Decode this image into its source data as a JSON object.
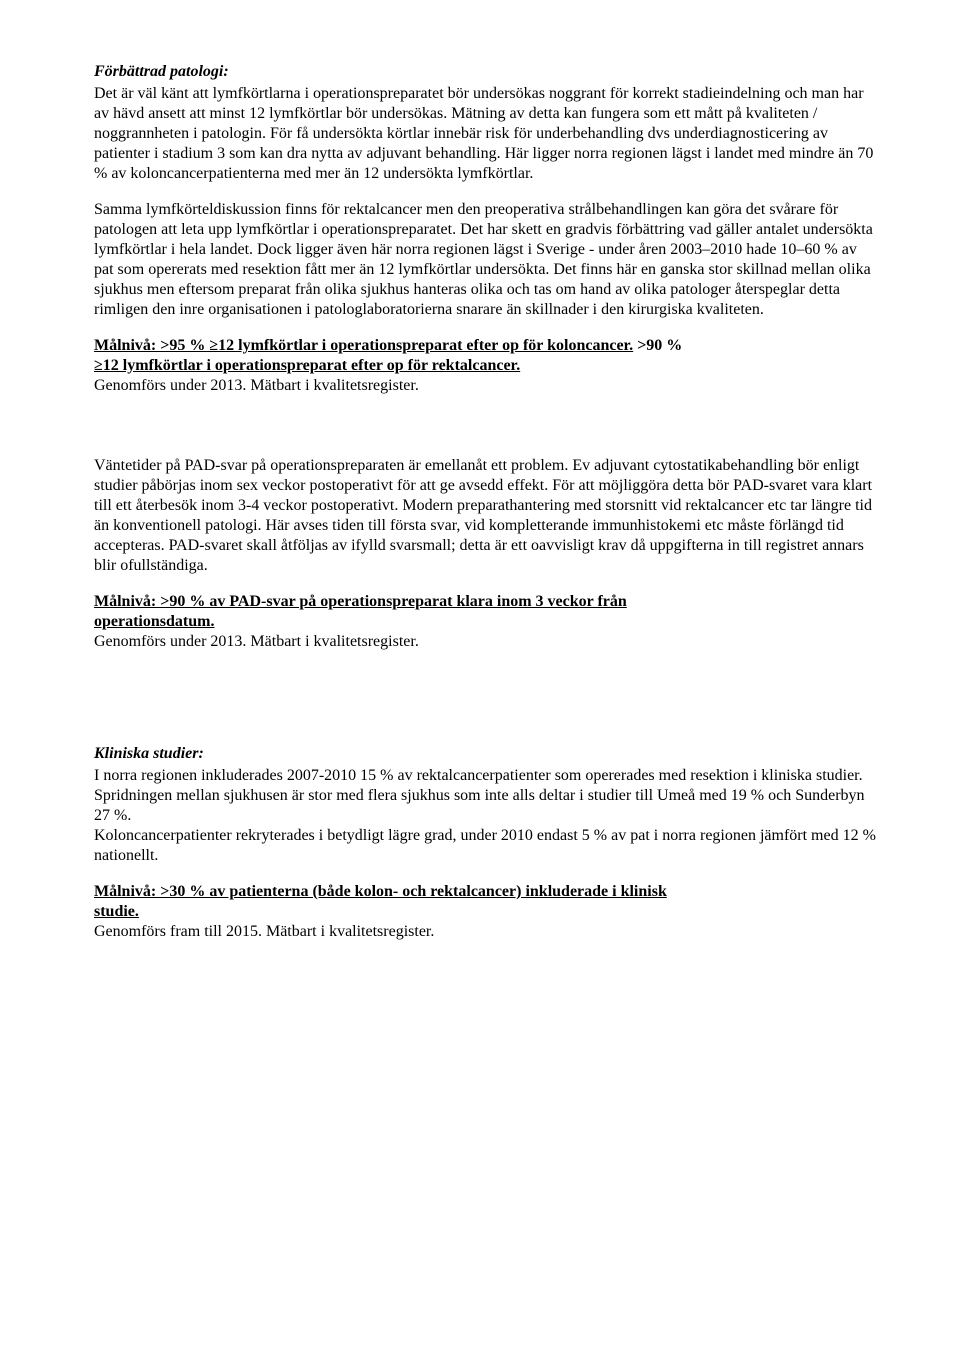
{
  "section1": {
    "heading": "Förbättrad patologi:",
    "p1": "Det är väl känt att lymfkörtlarna i operationspreparatet bör undersökas noggrant för korrekt stadieindelning och man har av hävd ansett att minst 12 lymfkörtlar bör undersökas. Mätning av detta kan fungera som ett mått på kvaliteten / noggrannheten i patologin. För få undersökta körtlar innebär risk för underbehandling dvs underdiagnosticering av patienter i stadium 3 som kan dra nytta av adjuvant behandling. Här ligger norra regionen lägst i landet med mindre än 70 % av koloncancerpatienterna med mer än 12 undersökta lymfkörtlar.",
    "p2": "Samma lymfkörteldiskussion finns för rektalcancer men den preoperativa strålbehandlingen kan göra det svårare för patologen att leta upp lymfkörtlar i operationspreparatet. Det har skett en gradvis förbättring vad gäller antalet undersökta lymfkörtlar i hela landet. Dock ligger även här norra regionen lägst i Sverige - under åren 2003–2010 hade 10–60 % av pat som opererats med resektion fått mer än 12 lymfkörtlar undersökta. Det finns här en ganska stor skillnad mellan olika sjukhus men eftersom preparat från olika sjukhus hanteras olika och tas om hand av olika patologer återspeglar detta rimligen den inre organisationen i patologlaboratorierna snarare än skillnader i den kirurgiska kvaliteten.",
    "goal_line1_a": "Målnivå: >95 % ≥12 lymfkörtlar i operationspreparat efter op för koloncancer.",
    "goal_line1_b": " >90 %",
    "goal_line2": "≥12 lymfkörtlar i operationspreparat efter op för rektalcancer.",
    "goal_note": "Genomförs under 2013. Mätbart i kvalitetsregister."
  },
  "section2": {
    "p1": "Väntetider på PAD-svar på operationspreparaten är emellanåt ett problem. Ev adjuvant cytostatikabehandling bör enligt studier påbörjas inom sex veckor postoperativt för att ge avsedd effekt. För att möjliggöra detta bör PAD-svaret vara klart till ett återbesök inom 3-4 veckor postoperativt.  Modern preparathantering med storsnitt vid rektalcancer etc tar längre tid än konventionell patologi. Här avses tiden till första svar, vid kompletterande immunhistokemi etc måste förlängd tid accepteras. PAD-svaret skall åtföljas av ifylld svarsmall; detta är ett oavvisligt krav då uppgifterna in till registret annars blir ofullständiga.",
    "goal_line1": "Målnivå: >90 % av PAD-svar på operationspreparat klara inom 3 veckor från",
    "goal_line2": "operationsdatum.",
    "goal_note": "Genomförs under 2013. Mätbart i kvalitetsregister."
  },
  "section3": {
    "heading": "Kliniska studier:",
    "p1": "I norra regionen inkluderades 2007-2010 15 % av rektalcancerpatienter som opererades med resektion i kliniska studier. Spridningen mellan sjukhusen är stor med flera sjukhus som inte alls deltar i studier till Umeå med 19 % och Sunderbyn 27 %.",
    "p2": "Koloncancerpatienter rekryterades i betydligt lägre grad, under 2010 endast 5 % av pat i norra regionen jämfört med 12 % nationellt.",
    "goal_line1": "Målnivå: >30 % av patienterna (både kolon- och rektalcancer) inkluderade i klinisk",
    "goal_line2": "studie.",
    "goal_note": "Genomförs fram till 2015. Mätbart i kvalitetsregister."
  }
}
